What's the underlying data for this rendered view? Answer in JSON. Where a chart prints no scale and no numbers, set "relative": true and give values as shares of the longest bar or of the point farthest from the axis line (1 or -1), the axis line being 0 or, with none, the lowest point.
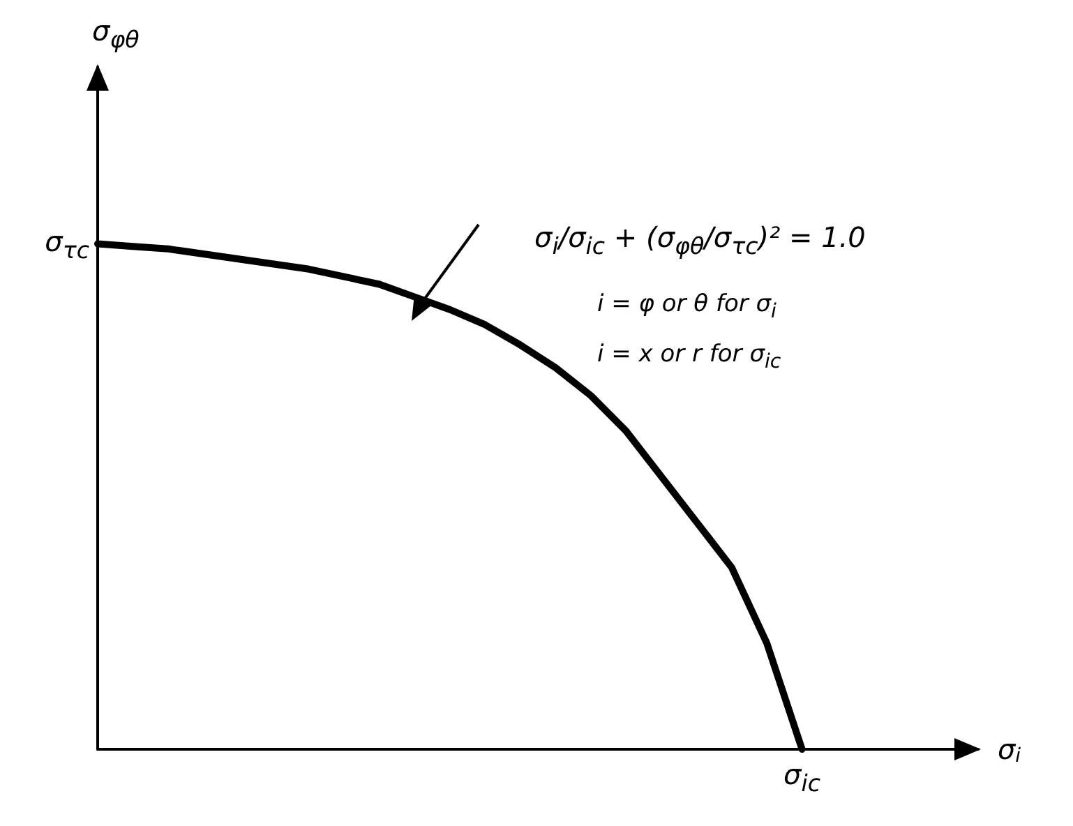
{
  "chart_data": {
    "type": "line",
    "relative": true,
    "xlabel": "σ$_{i}$",
    "categories": [
      null,
      null,
      null,
      null,
      null,
      null,
      null,
      null,
      null,
      null,
      null,
      null,
      null,
      null,
      null,
      null,
      null,
      null,
      null,
      null,
      null,
      null,
      null,
      null,
      null,
      null
    ],
    "series": [
      {
        "color": "#000000",
        "values": [
          1,
          0.995,
          0.99,
          0.98,
          0.97,
          0.96,
          0.95,
          0.935,
          0.92,
          0.895,
          0.87,
          0.84,
          0.8,
          0.755,
          0.7,
          0.63,
          0.54,
          0.45,
          0.36,
          0.21,
          0,
          null,
          null,
          null,
          null,
          null
        ]
      }
    ],
    "grid": false,
    "marker": "none",
    "line_style": "solid",
    "annotations": [
      "σ$_{τc}$",
      "σ$_{ic}$",
      "σ$_{i}$/σ$_{ic}$ + (σ$_{φθ}$/σ$_{τc}$)² = 1.0",
      "i =  φ or θ for σ$_{i}$",
      "i =  x or r for σ$_{ic}$",
      "σ$_{φθ}$"
    ]
  }
}
